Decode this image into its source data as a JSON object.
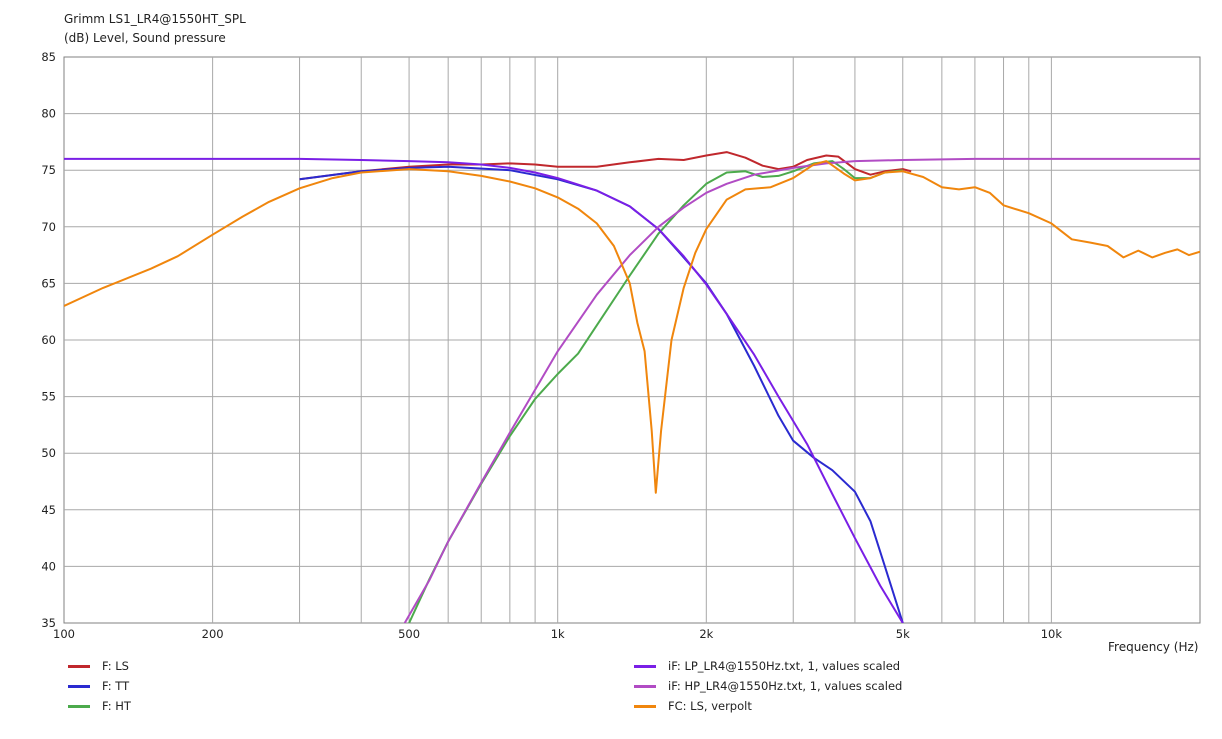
{
  "chart_data": {
    "type": "line",
    "title": "Grimm LS1_LR4@1550HT_SPL",
    "ylabel": "(dB)  Level, Sound pressure",
    "xlabel": "Frequency  (Hz)",
    "xscale": "log",
    "xlim": [
      100,
      20000
    ],
    "ylim": [
      35,
      85
    ],
    "grid": true,
    "legend_position": "bottom",
    "x_ticks": [
      {
        "value": 100,
        "label": "100"
      },
      {
        "value": 200,
        "label": "200"
      },
      {
        "value": 500,
        "label": "500"
      },
      {
        "value": 1000,
        "label": "1k"
      },
      {
        "value": 2000,
        "label": "2k"
      },
      {
        "value": 5000,
        "label": "5k"
      },
      {
        "value": 10000,
        "label": "10k"
      }
    ],
    "y_ticks": [
      35,
      40,
      45,
      50,
      55,
      60,
      65,
      70,
      75,
      80,
      85
    ],
    "series": [
      {
        "name": "F: LS",
        "color": "#c0282d",
        "points": [
          [
            300,
            74.2
          ],
          [
            400,
            74.9
          ],
          [
            500,
            75.3
          ],
          [
            600,
            75.5
          ],
          [
            700,
            75.5
          ],
          [
            800,
            75.6
          ],
          [
            900,
            75.5
          ],
          [
            1000,
            75.3
          ],
          [
            1200,
            75.3
          ],
          [
            1400,
            75.7
          ],
          [
            1600,
            76
          ],
          [
            1800,
            75.9
          ],
          [
            2000,
            76.3
          ],
          [
            2200,
            76.6
          ],
          [
            2400,
            76.1
          ],
          [
            2600,
            75.4
          ],
          [
            2800,
            75.1
          ],
          [
            3000,
            75.3
          ],
          [
            3200,
            75.9
          ],
          [
            3500,
            76.3
          ],
          [
            3700,
            76.2
          ],
          [
            4000,
            75.1
          ],
          [
            4300,
            74.6
          ],
          [
            4600,
            74.9
          ],
          [
            5000,
            75.1
          ],
          [
            5200,
            74.9
          ]
        ]
      },
      {
        "name": "F: TT",
        "color": "#2a2ad0",
        "points": [
          [
            300,
            74.2
          ],
          [
            400,
            74.9
          ],
          [
            500,
            75.2
          ],
          [
            600,
            75.3
          ],
          [
            800,
            75
          ],
          [
            1000,
            74.2
          ],
          [
            1200,
            73.2
          ],
          [
            1400,
            71.8
          ],
          [
            1600,
            69.8
          ],
          [
            1800,
            67.3
          ],
          [
            2000,
            65
          ],
          [
            2200,
            62.3
          ],
          [
            2500,
            57.7
          ],
          [
            2800,
            53.3
          ],
          [
            3000,
            51.1
          ],
          [
            3300,
            49.6
          ],
          [
            3600,
            48.5
          ],
          [
            4000,
            46.6
          ],
          [
            4300,
            44
          ],
          [
            4600,
            40
          ],
          [
            5000,
            35
          ]
        ]
      },
      {
        "name": "F: HT",
        "color": "#4caa4c",
        "points": [
          [
            500,
            35
          ],
          [
            550,
            38.9
          ],
          [
            600,
            42.2
          ],
          [
            700,
            47.3
          ],
          [
            800,
            51.5
          ],
          [
            900,
            54.8
          ],
          [
            1000,
            57
          ],
          [
            1100,
            58.8
          ],
          [
            1200,
            61.3
          ],
          [
            1400,
            65.7
          ],
          [
            1600,
            69.4
          ],
          [
            1800,
            71.9
          ],
          [
            2000,
            73.8
          ],
          [
            2200,
            74.8
          ],
          [
            2400,
            74.9
          ],
          [
            2600,
            74.4
          ],
          [
            2800,
            74.5
          ],
          [
            3000,
            74.9
          ],
          [
            3300,
            75.6
          ],
          [
            3600,
            75.8
          ],
          [
            3800,
            75.1
          ],
          [
            4000,
            74.3
          ],
          [
            4300,
            74.3
          ],
          [
            4600,
            74.8
          ],
          [
            5000,
            75
          ]
        ]
      },
      {
        "name": "iF: LP_LR4@1550Hz.txt, 1, values scaled",
        "color": "#7a1fe6",
        "points": [
          [
            100,
            76
          ],
          [
            300,
            76
          ],
          [
            400,
            75.9
          ],
          [
            500,
            75.8
          ],
          [
            600,
            75.7
          ],
          [
            700,
            75.5
          ],
          [
            800,
            75.2
          ],
          [
            900,
            74.8
          ],
          [
            1000,
            74.3
          ],
          [
            1200,
            73.2
          ],
          [
            1400,
            71.8
          ],
          [
            1600,
            69.8
          ],
          [
            1800,
            67.4
          ],
          [
            2000,
            64.9
          ],
          [
            2200,
            62.3
          ],
          [
            2500,
            58.7
          ],
          [
            2800,
            55
          ],
          [
            3200,
            50.8
          ],
          [
            3600,
            46.4
          ],
          [
            4000,
            42.5
          ],
          [
            4500,
            38.3
          ],
          [
            5000,
            35
          ]
        ]
      },
      {
        "name": "iF: HP_LR4@1550Hz.txt, 1, values scaled",
        "color": "#b14cc4",
        "points": [
          [
            490,
            35
          ],
          [
            550,
            38.8
          ],
          [
            600,
            42.2
          ],
          [
            700,
            47.4
          ],
          [
            800,
            51.8
          ],
          [
            900,
            55.6
          ],
          [
            1000,
            59
          ],
          [
            1200,
            64
          ],
          [
            1400,
            67.5
          ],
          [
            1600,
            70
          ],
          [
            1800,
            71.7
          ],
          [
            2000,
            73
          ],
          [
            2200,
            73.8
          ],
          [
            2500,
            74.6
          ],
          [
            3000,
            75.2
          ],
          [
            3500,
            75.6
          ],
          [
            4000,
            75.8
          ],
          [
            5000,
            75.9
          ],
          [
            7000,
            76
          ],
          [
            20000,
            76
          ]
        ]
      },
      {
        "name": "FC: LS, verpolt",
        "color": "#f0860d",
        "points": [
          [
            100,
            63
          ],
          [
            120,
            64.6
          ],
          [
            150,
            66.3
          ],
          [
            170,
            67.4
          ],
          [
            200,
            69.3
          ],
          [
            230,
            70.9
          ],
          [
            260,
            72.2
          ],
          [
            300,
            73.4
          ],
          [
            350,
            74.3
          ],
          [
            400,
            74.8
          ],
          [
            500,
            75.1
          ],
          [
            600,
            74.9
          ],
          [
            700,
            74.5
          ],
          [
            800,
            74
          ],
          [
            900,
            73.4
          ],
          [
            1000,
            72.6
          ],
          [
            1100,
            71.6
          ],
          [
            1200,
            70.3
          ],
          [
            1300,
            68.3
          ],
          [
            1400,
            65
          ],
          [
            1450,
            61.5
          ],
          [
            1500,
            59
          ],
          [
            1550,
            52
          ],
          [
            1580,
            46.5
          ],
          [
            1620,
            52
          ],
          [
            1700,
            60
          ],
          [
            1800,
            64.6
          ],
          [
            1900,
            67.7
          ],
          [
            2000,
            69.8
          ],
          [
            2200,
            72.4
          ],
          [
            2400,
            73.3
          ],
          [
            2700,
            73.5
          ],
          [
            3000,
            74.3
          ],
          [
            3300,
            75.5
          ],
          [
            3500,
            75.8
          ],
          [
            3800,
            74.7
          ],
          [
            4000,
            74.1
          ],
          [
            4300,
            74.3
          ],
          [
            4600,
            74.8
          ],
          [
            5000,
            74.9
          ],
          [
            5500,
            74.4
          ],
          [
            6000,
            73.5
          ],
          [
            6500,
            73.3
          ],
          [
            7000,
            73.5
          ],
          [
            7500,
            73
          ],
          [
            8000,
            71.9
          ],
          [
            9000,
            71.2
          ],
          [
            10000,
            70.3
          ],
          [
            11000,
            68.9
          ],
          [
            12000,
            68.6
          ],
          [
            13000,
            68.3
          ],
          [
            14000,
            67.3
          ],
          [
            15000,
            67.9
          ],
          [
            16000,
            67.3
          ],
          [
            17000,
            67.7
          ],
          [
            18000,
            68
          ],
          [
            19000,
            67.5
          ],
          [
            20000,
            67.8
          ],
          [
            21000,
            67.4
          ],
          [
            22000,
            66.8
          ],
          [
            24000,
            65.8
          ]
        ]
      }
    ]
  }
}
